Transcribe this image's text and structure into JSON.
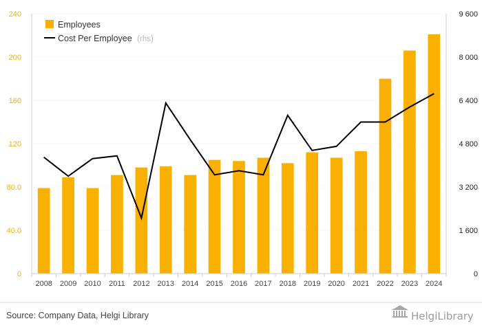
{
  "chart_data": {
    "type": "bar",
    "categories": [
      "2008",
      "2009",
      "2010",
      "2011",
      "2012",
      "2013",
      "2014",
      "2015",
      "2016",
      "2017",
      "2018",
      "2019",
      "2020",
      "2021",
      "2022",
      "2023",
      "2024"
    ],
    "series": [
      {
        "name": "Employees",
        "type": "bar",
        "axis": "left",
        "color": "#f9b000",
        "values": [
          79,
          89,
          79,
          91,
          98,
          99,
          91,
          105,
          104,
          107,
          102,
          112,
          107,
          113,
          180,
          206,
          221
        ]
      },
      {
        "name": "Cost Per Employee",
        "suffix": "(rhs)",
        "type": "line",
        "axis": "right",
        "color": "#000000",
        "values": [
          4300,
          3600,
          4250,
          4350,
          2050,
          6300,
          4950,
          3650,
          3800,
          3650,
          5850,
          4550,
          4700,
          5600,
          5600,
          6150,
          6650
        ]
      }
    ],
    "ylim_left": [
      0,
      240
    ],
    "yticks_left": [
      "0",
      "40.0",
      "80.0",
      "120",
      "160",
      "200",
      "240"
    ],
    "ylim_right": [
      0,
      9600
    ],
    "yticks_right": [
      "0",
      "1 600",
      "3 200",
      "4 800",
      "6 400",
      "8 000",
      "9 600"
    ],
    "grid": true,
    "legend_position": "top-left"
  },
  "source": "Source: Company Data, Helgi Library",
  "logo": "HelgiLibrary"
}
